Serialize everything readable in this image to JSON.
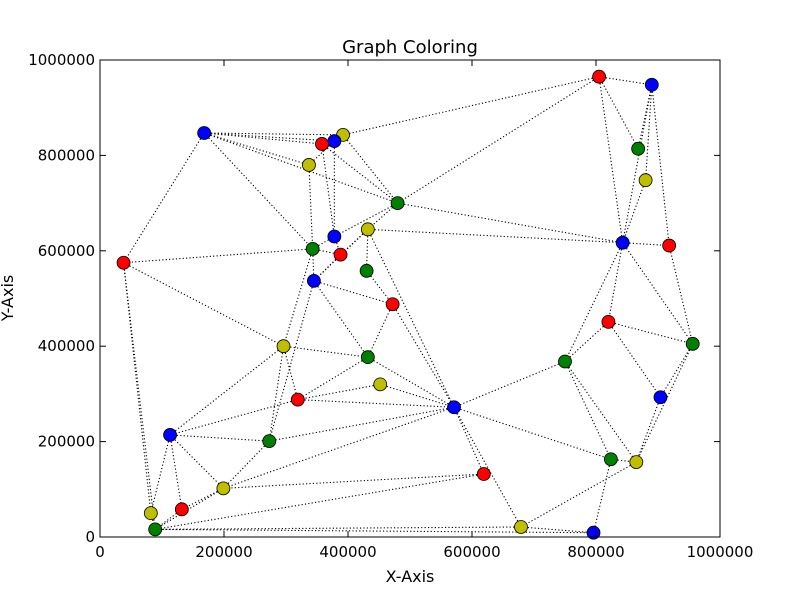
{
  "chart_data": {
    "type": "scatter",
    "title": "Graph Coloring",
    "xlabel": "X-Axis",
    "ylabel": "Y-Axis",
    "xlim": [
      0,
      1000000
    ],
    "ylim": [
      0,
      1000000
    ],
    "xticks": [
      0,
      200000,
      400000,
      600000,
      800000,
      1000000
    ],
    "yticks": [
      0,
      200000,
      400000,
      600000,
      800000,
      1000000
    ],
    "xtick_labels": [
      "0",
      "200000",
      "400000",
      "600000",
      "800000",
      "1000000"
    ],
    "ytick_labels": [
      "0",
      "200000",
      "400000",
      "600000",
      "800000",
      "1000000"
    ],
    "grid": false,
    "colors": {
      "red": "#ff0000",
      "blue": "#0000ff",
      "green": "#008000",
      "yellow": "#bfbf00",
      "edge": "#000000"
    },
    "nodes": [
      {
        "x": 805000,
        "y": 965000,
        "color": "red"
      },
      {
        "x": 890000,
        "y": 948000,
        "color": "blue"
      },
      {
        "x": 168000,
        "y": 847000,
        "color": "blue"
      },
      {
        "x": 392000,
        "y": 843000,
        "color": "yellow"
      },
      {
        "x": 378000,
        "y": 830000,
        "color": "blue"
      },
      {
        "x": 358000,
        "y": 824000,
        "color": "red"
      },
      {
        "x": 868000,
        "y": 814000,
        "color": "green"
      },
      {
        "x": 337000,
        "y": 780000,
        "color": "yellow"
      },
      {
        "x": 880000,
        "y": 748000,
        "color": "yellow"
      },
      {
        "x": 480000,
        "y": 700000,
        "color": "green"
      },
      {
        "x": 432000,
        "y": 645000,
        "color": "yellow"
      },
      {
        "x": 378000,
        "y": 630000,
        "color": "blue"
      },
      {
        "x": 843000,
        "y": 617000,
        "color": "blue"
      },
      {
        "x": 918000,
        "y": 611000,
        "color": "red"
      },
      {
        "x": 343000,
        "y": 604000,
        "color": "green"
      },
      {
        "x": 388000,
        "y": 592000,
        "color": "red"
      },
      {
        "x": 38000,
        "y": 575000,
        "color": "red"
      },
      {
        "x": 430000,
        "y": 558000,
        "color": "green"
      },
      {
        "x": 345000,
        "y": 537000,
        "color": "blue"
      },
      {
        "x": 472000,
        "y": 488000,
        "color": "red"
      },
      {
        "x": 820000,
        "y": 451000,
        "color": "red"
      },
      {
        "x": 956000,
        "y": 405000,
        "color": "green"
      },
      {
        "x": 296000,
        "y": 400000,
        "color": "yellow"
      },
      {
        "x": 432000,
        "y": 377000,
        "color": "green"
      },
      {
        "x": 750000,
        "y": 368000,
        "color": "green"
      },
      {
        "x": 452000,
        "y": 320000,
        "color": "yellow"
      },
      {
        "x": 904000,
        "y": 293000,
        "color": "blue"
      },
      {
        "x": 319000,
        "y": 288000,
        "color": "red"
      },
      {
        "x": 571000,
        "y": 272000,
        "color": "blue"
      },
      {
        "x": 113000,
        "y": 214000,
        "color": "blue"
      },
      {
        "x": 273000,
        "y": 201000,
        "color": "green"
      },
      {
        "x": 824000,
        "y": 163000,
        "color": "green"
      },
      {
        "x": 865000,
        "y": 157000,
        "color": "yellow"
      },
      {
        "x": 619000,
        "y": 132000,
        "color": "red"
      },
      {
        "x": 199000,
        "y": 102000,
        "color": "yellow"
      },
      {
        "x": 132000,
        "y": 58000,
        "color": "red"
      },
      {
        "x": 82000,
        "y": 50000,
        "color": "yellow"
      },
      {
        "x": 679000,
        "y": 21000,
        "color": "yellow"
      },
      {
        "x": 89000,
        "y": 16000,
        "color": "green"
      },
      {
        "x": 796000,
        "y": 9000,
        "color": "blue"
      }
    ],
    "edges": [
      [
        0,
        1
      ],
      [
        0,
        3
      ],
      [
        0,
        9
      ],
      [
        0,
        6
      ],
      [
        0,
        12
      ],
      [
        1,
        6
      ],
      [
        1,
        8
      ],
      [
        1,
        12
      ],
      [
        1,
        13
      ],
      [
        2,
        3
      ],
      [
        2,
        4
      ],
      [
        2,
        5
      ],
      [
        2,
        7
      ],
      [
        2,
        14
      ],
      [
        2,
        16
      ],
      [
        2,
        9
      ],
      [
        3,
        9
      ],
      [
        4,
        7
      ],
      [
        4,
        11
      ],
      [
        5,
        11
      ],
      [
        5,
        9
      ],
      [
        7,
        14
      ],
      [
        9,
        10
      ],
      [
        9,
        11
      ],
      [
        9,
        12
      ],
      [
        10,
        12
      ],
      [
        10,
        17
      ],
      [
        10,
        15
      ],
      [
        10,
        18
      ],
      [
        10,
        28
      ],
      [
        11,
        14
      ],
      [
        11,
        15
      ],
      [
        12,
        13
      ],
      [
        12,
        24
      ],
      [
        12,
        20
      ],
      [
        12,
        21
      ],
      [
        8,
        12
      ],
      [
        13,
        21
      ],
      [
        14,
        16
      ],
      [
        14,
        18
      ],
      [
        14,
        22
      ],
      [
        14,
        15
      ],
      [
        15,
        18
      ],
      [
        16,
        22
      ],
      [
        16,
        38
      ],
      [
        16,
        36
      ],
      [
        17,
        19
      ],
      [
        18,
        19
      ],
      [
        18,
        23
      ],
      [
        18,
        30
      ],
      [
        19,
        23
      ],
      [
        19,
        28
      ],
      [
        20,
        24
      ],
      [
        20,
        26
      ],
      [
        20,
        21
      ],
      [
        21,
        26
      ],
      [
        21,
        32
      ],
      [
        22,
        23
      ],
      [
        22,
        27
      ],
      [
        22,
        29
      ],
      [
        22,
        30
      ],
      [
        23,
        27
      ],
      [
        23,
        28
      ],
      [
        24,
        28
      ],
      [
        24,
        31
      ],
      [
        24,
        32
      ],
      [
        25,
        27
      ],
      [
        25,
        28
      ],
      [
        26,
        32
      ],
      [
        27,
        28
      ],
      [
        27,
        29
      ],
      [
        28,
        30
      ],
      [
        28,
        34
      ],
      [
        28,
        33
      ],
      [
        28,
        31
      ],
      [
        28,
        37
      ],
      [
        29,
        30
      ],
      [
        29,
        34
      ],
      [
        29,
        35
      ],
      [
        29,
        36
      ],
      [
        30,
        34
      ],
      [
        31,
        32
      ],
      [
        31,
        39
      ],
      [
        32,
        37
      ],
      [
        33,
        34
      ],
      [
        33,
        38
      ],
      [
        34,
        35
      ],
      [
        34,
        38
      ],
      [
        35,
        38
      ],
      [
        36,
        38
      ],
      [
        37,
        38
      ],
      [
        37,
        39
      ],
      [
        38,
        39
      ]
    ]
  }
}
